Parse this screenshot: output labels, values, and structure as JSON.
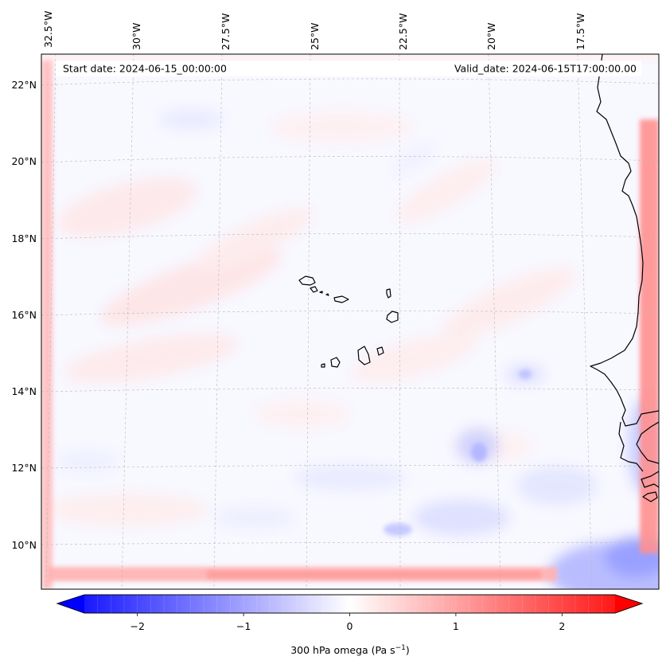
{
  "map": {
    "start_date": "Start date: 2024-06-15_00:00:00",
    "valid_date": "Valid_date: 2024-06-15T17:00:00.00",
    "lon_labels": [
      "32.5°W",
      "30°W",
      "27.5°W",
      "25°W",
      "22.5°W",
      "20°W",
      "17.5°W"
    ],
    "lat_labels": [
      "22°N",
      "20°N",
      "18°N",
      "16°N",
      "14°N",
      "12°N",
      "10°N"
    ],
    "colors": {
      "negative": "#0000ff",
      "neutral": "#ffffff",
      "positive": "#ff0000",
      "coastline": "#000000",
      "gridline": "#b8b8b8"
    }
  },
  "colorbar": {
    "label_prefix": "300 hPa omega (Pa s",
    "label_exp": "−1",
    "label_suffix": ")",
    "ticks": [
      "−2",
      "−1",
      "0",
      "1",
      "2"
    ],
    "tick_values": [
      -2,
      -1,
      0,
      1,
      2
    ],
    "range": [
      -2.5,
      2.5
    ]
  }
}
